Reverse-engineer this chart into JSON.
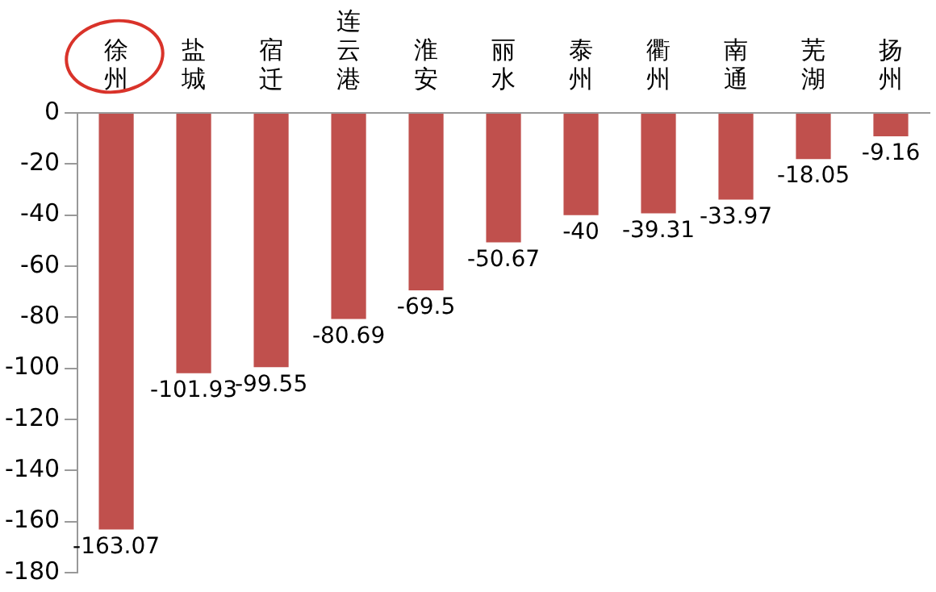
{
  "chart_data": {
    "type": "bar",
    "categories": [
      "徐州",
      "盐城",
      "宿迁",
      "连云港",
      "淮安",
      "丽水",
      "泰州",
      "衢州",
      "南通",
      "芜湖",
      "扬州"
    ],
    "values": [
      -163.07,
      -101.93,
      -99.55,
      -80.69,
      -69.5,
      -50.67,
      -40,
      -39.31,
      -33.97,
      -18.05,
      -9.16
    ],
    "color": "#c0504d",
    "ylim": [
      -180,
      0
    ],
    "yticks": [
      -180,
      -160,
      -140,
      -120,
      -100,
      -80,
      -60,
      -40,
      -20,
      0
    ],
    "grid": false,
    "legend": false,
    "data_labels": true
  }
}
